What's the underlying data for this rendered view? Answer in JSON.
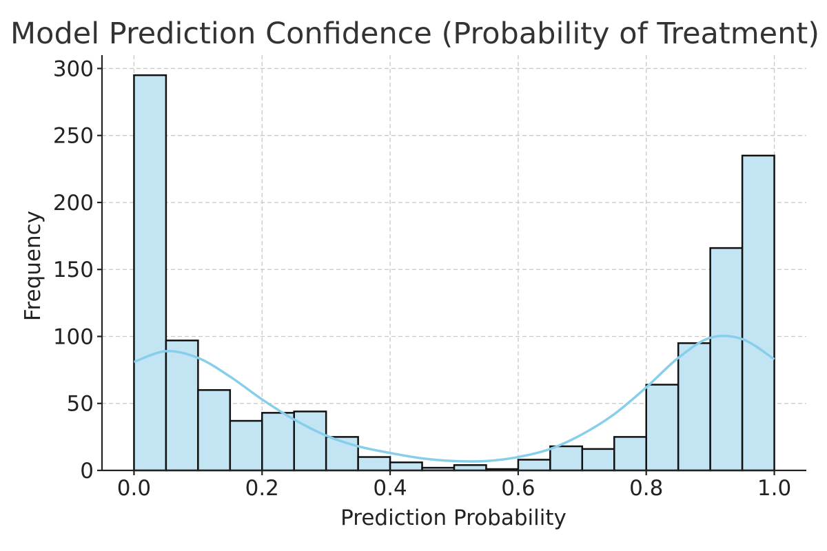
{
  "chart_data": {
    "type": "bar",
    "title": "Model Prediction Confidence (Probability of Treatment)",
    "xlabel": "Prediction Probability",
    "ylabel": "Frequency",
    "xlim": [
      -0.05,
      1.05
    ],
    "ylim": [
      0,
      310
    ],
    "x_ticks": [
      0.0,
      0.2,
      0.4,
      0.6,
      0.8,
      1.0
    ],
    "x_tick_labels": [
      "0.0",
      "0.2",
      "0.4",
      "0.6",
      "0.8",
      "1.0"
    ],
    "y_ticks": [
      0,
      50,
      100,
      150,
      200,
      250,
      300
    ],
    "y_tick_labels": [
      "0",
      "50",
      "100",
      "150",
      "200",
      "250",
      "300"
    ],
    "grid": true,
    "bin_edges": [
      0.0,
      0.05,
      0.1,
      0.15,
      0.2,
      0.25,
      0.3,
      0.35,
      0.4,
      0.45,
      0.5,
      0.55,
      0.6,
      0.65,
      0.7,
      0.75,
      0.8,
      0.85,
      0.9,
      0.95,
      1.0
    ],
    "values": [
      295,
      97,
      60,
      37,
      43,
      44,
      25,
      10,
      6,
      2,
      4,
      1,
      8,
      18,
      16,
      25,
      64,
      95,
      166,
      235
    ],
    "kde": {
      "x": [
        0.0,
        0.05,
        0.1,
        0.15,
        0.2,
        0.25,
        0.3,
        0.35,
        0.4,
        0.45,
        0.5,
        0.55,
        0.6,
        0.65,
        0.7,
        0.75,
        0.8,
        0.85,
        0.9,
        0.95,
        1.0
      ],
      "y": [
        81,
        89,
        84,
        70,
        53,
        38,
        26,
        18,
        13,
        9,
        7,
        7,
        10,
        16,
        27,
        42,
        62,
        84,
        99,
        98,
        83
      ]
    },
    "colors": {
      "bar_fill": "#c2e4f3",
      "bar_edge": "#111111",
      "kde_line": "#87ceeb"
    }
  }
}
